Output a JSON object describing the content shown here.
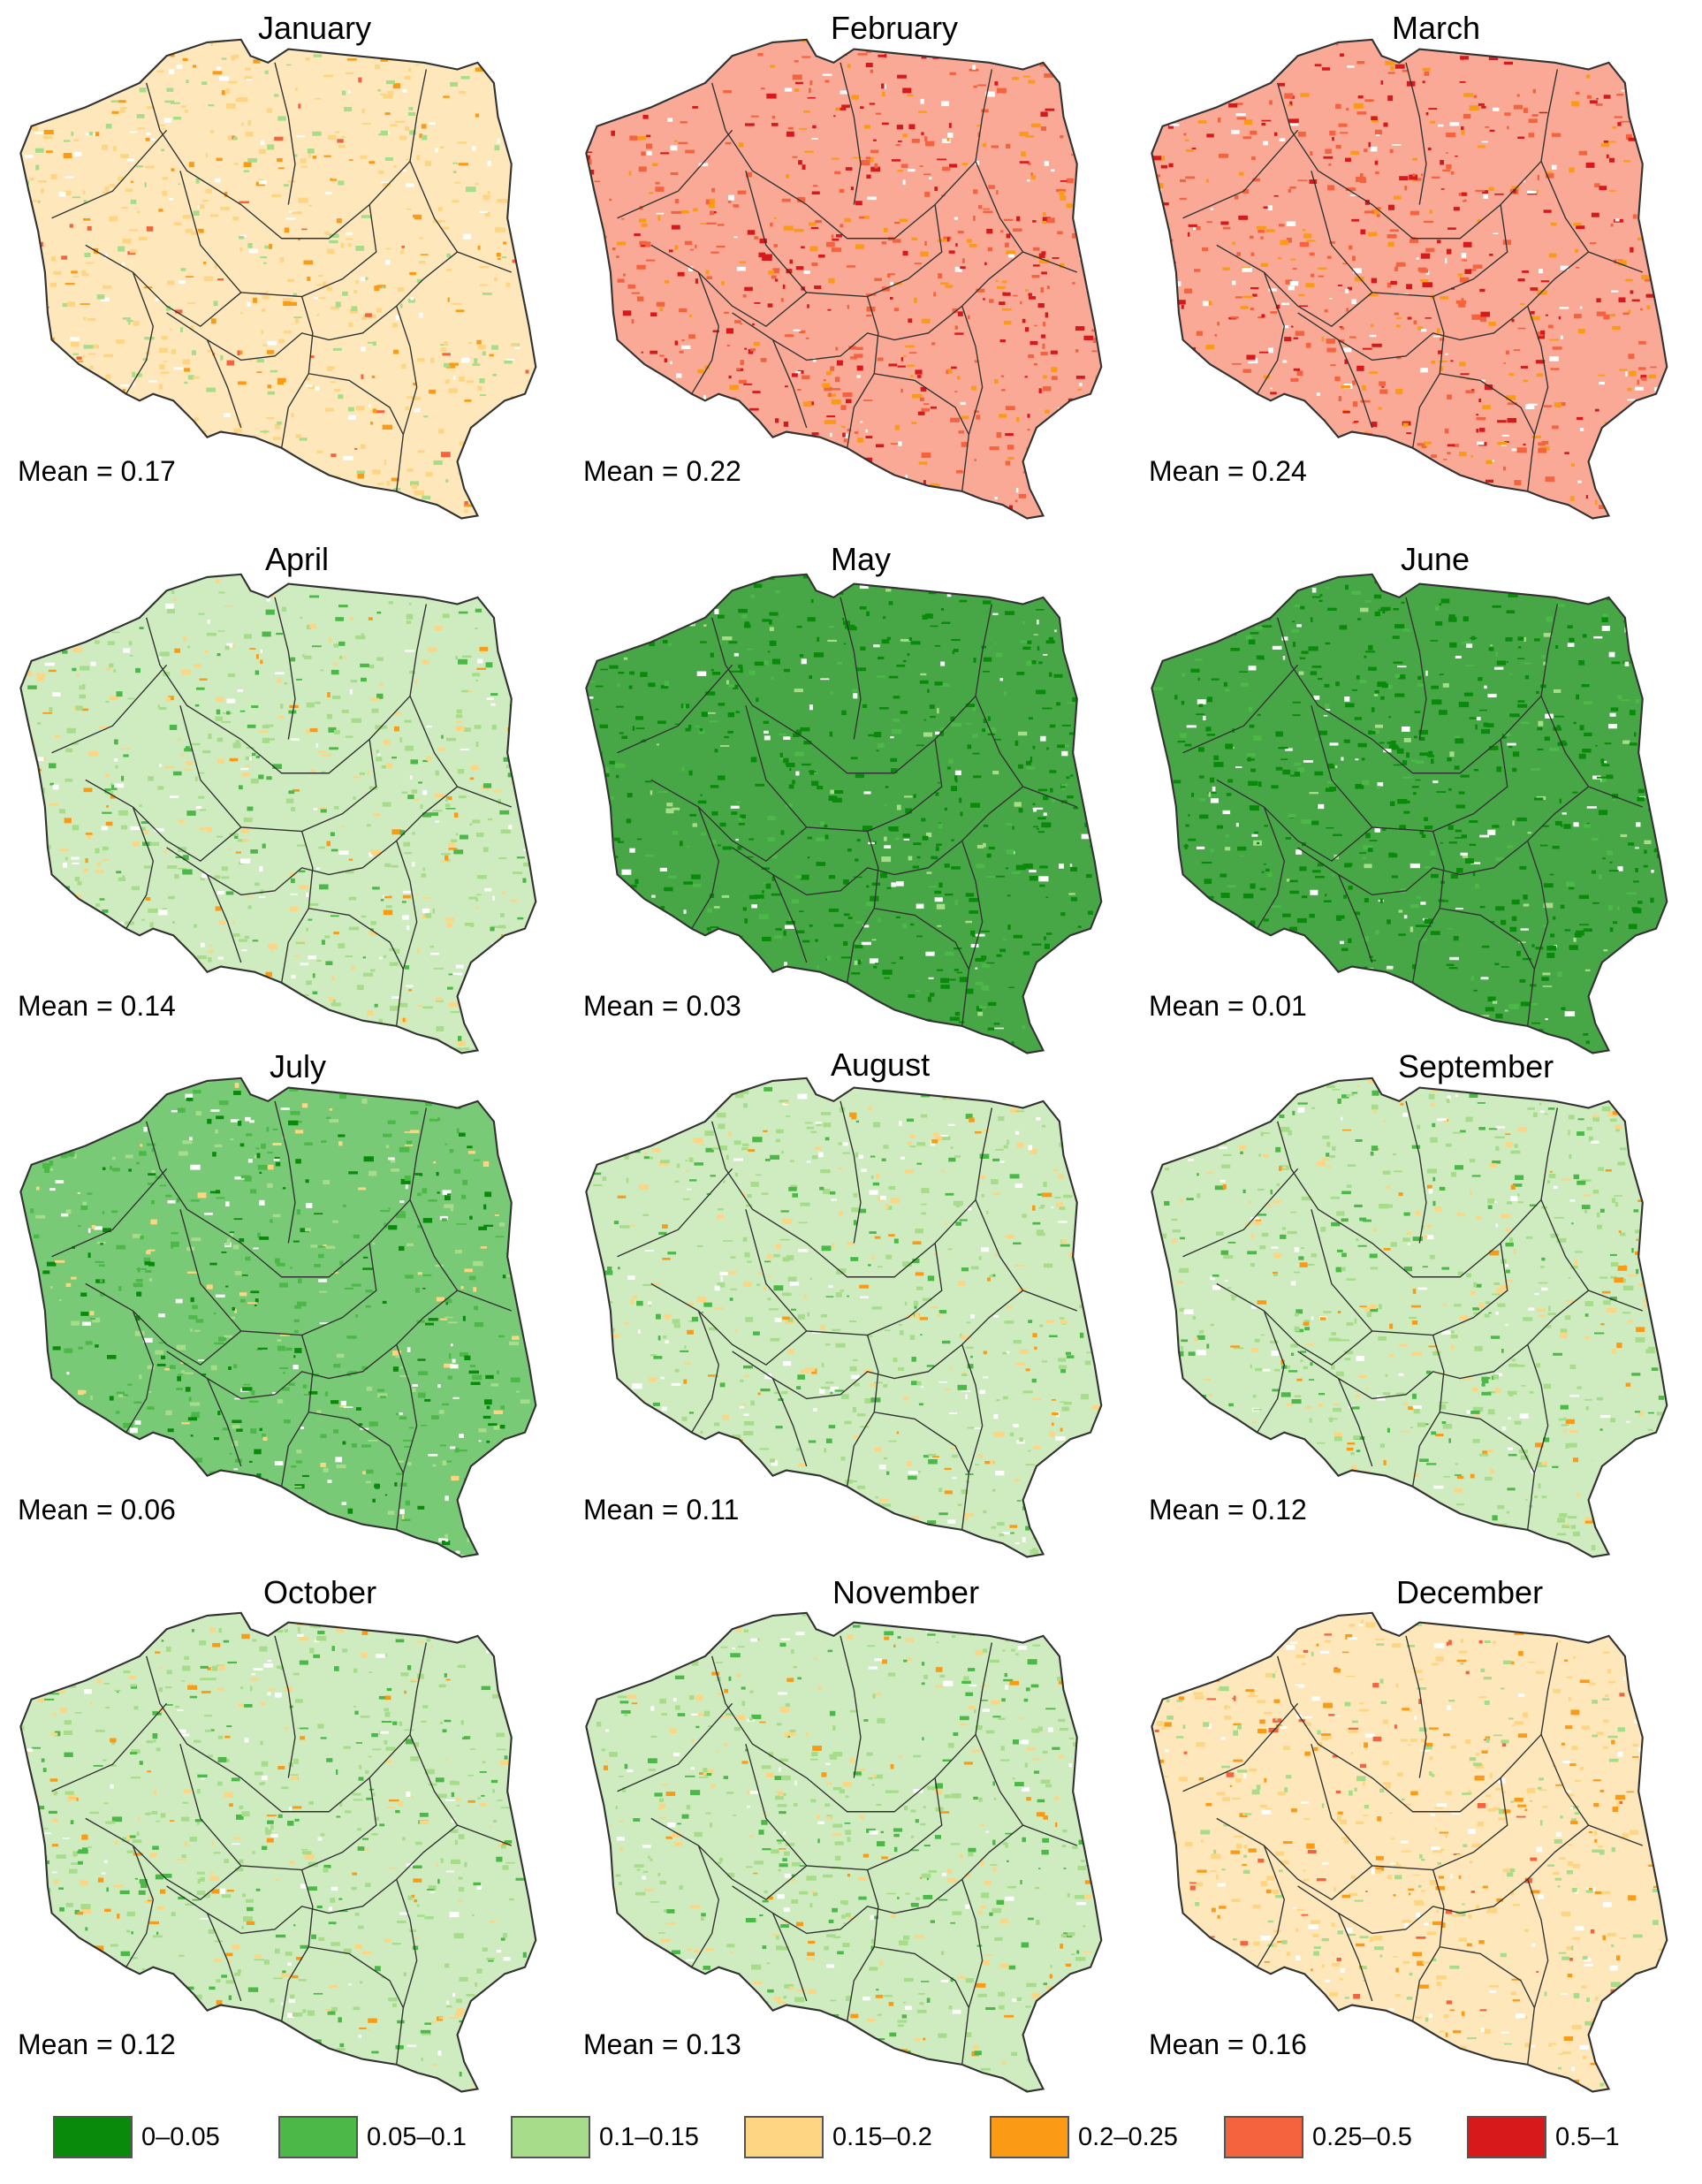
{
  "figure": {
    "country": "Poland",
    "panels": [
      {
        "month": "January",
        "mean_text": "Mean = 0.17",
        "mean": 0.17,
        "dominant_class": 3
      },
      {
        "month": "February",
        "mean_text": "Mean = 0.22",
        "mean": 0.22,
        "dominant_class": 5
      },
      {
        "month": "March",
        "mean_text": "Mean = 0.24",
        "mean": 0.24,
        "dominant_class": 5
      },
      {
        "month": "April",
        "mean_text": "Mean = 0.14",
        "mean": 0.14,
        "dominant_class": 2
      },
      {
        "month": "May",
        "mean_text": "Mean = 0.03",
        "mean": 0.03,
        "dominant_class": 0
      },
      {
        "month": "June",
        "mean_text": "Mean = 0.01",
        "mean": 0.01,
        "dominant_class": 0
      },
      {
        "month": "July",
        "mean_text": "Mean = 0.06",
        "mean": 0.06,
        "dominant_class": 1
      },
      {
        "month": "August",
        "mean_text": "Mean = 0.11",
        "mean": 0.11,
        "dominant_class": 2
      },
      {
        "month": "September",
        "mean_text": "Mean = 0.12",
        "mean": 0.12,
        "dominant_class": 2
      },
      {
        "month": "October",
        "mean_text": "Mean = 0.12",
        "mean": 0.12,
        "dominant_class": 2
      },
      {
        "month": "November",
        "mean_text": "Mean = 0.13",
        "mean": 0.13,
        "dominant_class": 2
      },
      {
        "month": "December",
        "mean_text": "Mean = 0.16",
        "mean": 0.16,
        "dominant_class": 3
      }
    ]
  },
  "legend": {
    "items": [
      {
        "label": "0–0.05",
        "color": "#0a8a0a"
      },
      {
        "label": "0.05–0.1",
        "color": "#4cb848"
      },
      {
        "label": "0.1–0.15",
        "color": "#a6dc8a"
      },
      {
        "label": "0.15–0.2",
        "color": "#fdd583"
      },
      {
        "label": "0.2–0.25",
        "color": "#fb9a14"
      },
      {
        "label": "0.25–0.5",
        "color": "#f4623e"
      },
      {
        "label": "0.5–1",
        "color": "#d7191c"
      }
    ]
  },
  "colors": {
    "border": "#333333",
    "background": "#ffffff"
  }
}
